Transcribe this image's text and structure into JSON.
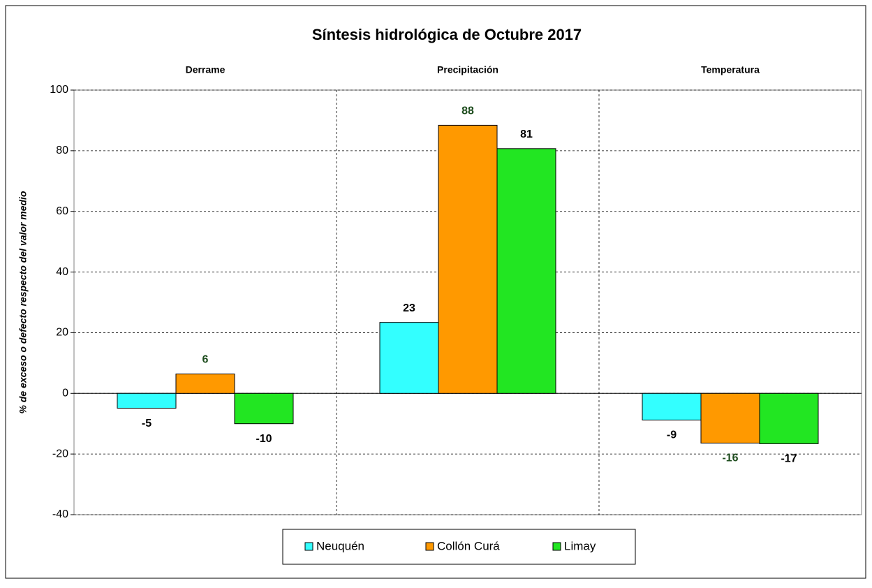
{
  "chart_data": {
    "type": "bar",
    "title": "Síntesis hidrológica de Octubre 2017",
    "y_label": "% de exceso o defecto respecto del valor medio",
    "categories": [
      "Derrame",
      "Precipitación",
      "Temperatura"
    ],
    "series": [
      {
        "name": "Neuquén",
        "color": "#33ffff",
        "label_color": "#000000",
        "values": [
          -4.9,
          23.4,
          -8.8
        ],
        "value_labels": [
          "-5",
          "23",
          "-9"
        ]
      },
      {
        "name": "Collón Curá",
        "color": "#ff9900",
        "label_color": "#1e4d1e",
        "values": [
          6.4,
          88.4,
          -16.4
        ],
        "value_labels": [
          "6",
          "88",
          "-16"
        ]
      },
      {
        "name": "Limay",
        "color": "#22e622",
        "label_color": "#000000",
        "values": [
          -10,
          80.7,
          -16.6
        ],
        "value_labels": [
          "-10",
          "81",
          "-17"
        ]
      }
    ],
    "ylim": [
      -40,
      100
    ],
    "yticks": [
      -40,
      -20,
      0,
      20,
      40,
      60,
      80,
      100
    ],
    "grid": true,
    "legend": "bottom"
  }
}
